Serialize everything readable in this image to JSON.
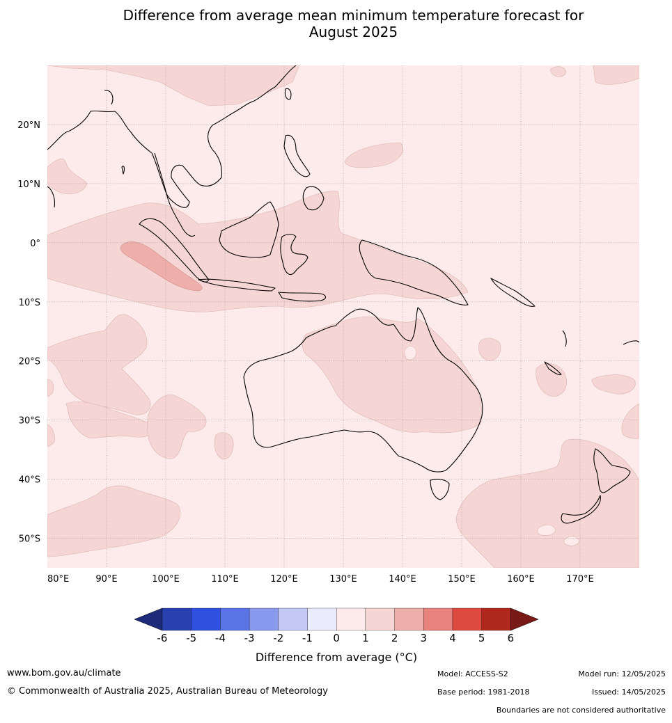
{
  "title_line1": "Difference from average mean minimum temperature forecast for",
  "title_line2": "August 2025",
  "map": {
    "lon_ticks": [
      "80°E",
      "90°E",
      "100°E",
      "110°E",
      "120°E",
      "130°E",
      "140°E",
      "150°E",
      "160°E",
      "170°E"
    ],
    "lat_ticks": [
      "20°N",
      "10°N",
      "0°",
      "10°S",
      "20°S",
      "30°S",
      "40°S",
      "50°S"
    ],
    "lon_range": [
      80,
      180
    ],
    "lat_range": [
      -55,
      30
    ],
    "grid": true,
    "background_color": "#fcebea",
    "region_colors": {
      "anomaly_1_to_2": "#f6d6d4",
      "anomaly_2_to_3": "#eeaeaa"
    }
  },
  "colorbar": {
    "labels": [
      "-6",
      "-5",
      "-4",
      "-3",
      "-2",
      "-1",
      "0",
      "1",
      "2",
      "3",
      "4",
      "5",
      "6"
    ],
    "colors": [
      "#1e2a7a",
      "#2840b0",
      "#3050e0",
      "#5a74e6",
      "#8899ee",
      "#c3c8f5",
      "#eaecfb",
      "#fcebea",
      "#f6d6d4",
      "#eeaeaa",
      "#e8827c",
      "#dc4a40",
      "#b0281e",
      "#7a1a16"
    ],
    "label": "Difference from average ($^\\circ$C)",
    "label_display": "Difference from average (°C)"
  },
  "footer": {
    "website": "www.bom.gov.au/climate",
    "copyright": "© Commonwealth of Australia 2025, Australian Bureau of Meteorology",
    "model": "Model: ACCESS-S2",
    "base_period": "Base period: 1981-2018",
    "model_run": "Model run: 12/05/2025",
    "issued": "Issued: 14/05/2025",
    "disclaimer": "Boundaries are not considered authoritative"
  }
}
